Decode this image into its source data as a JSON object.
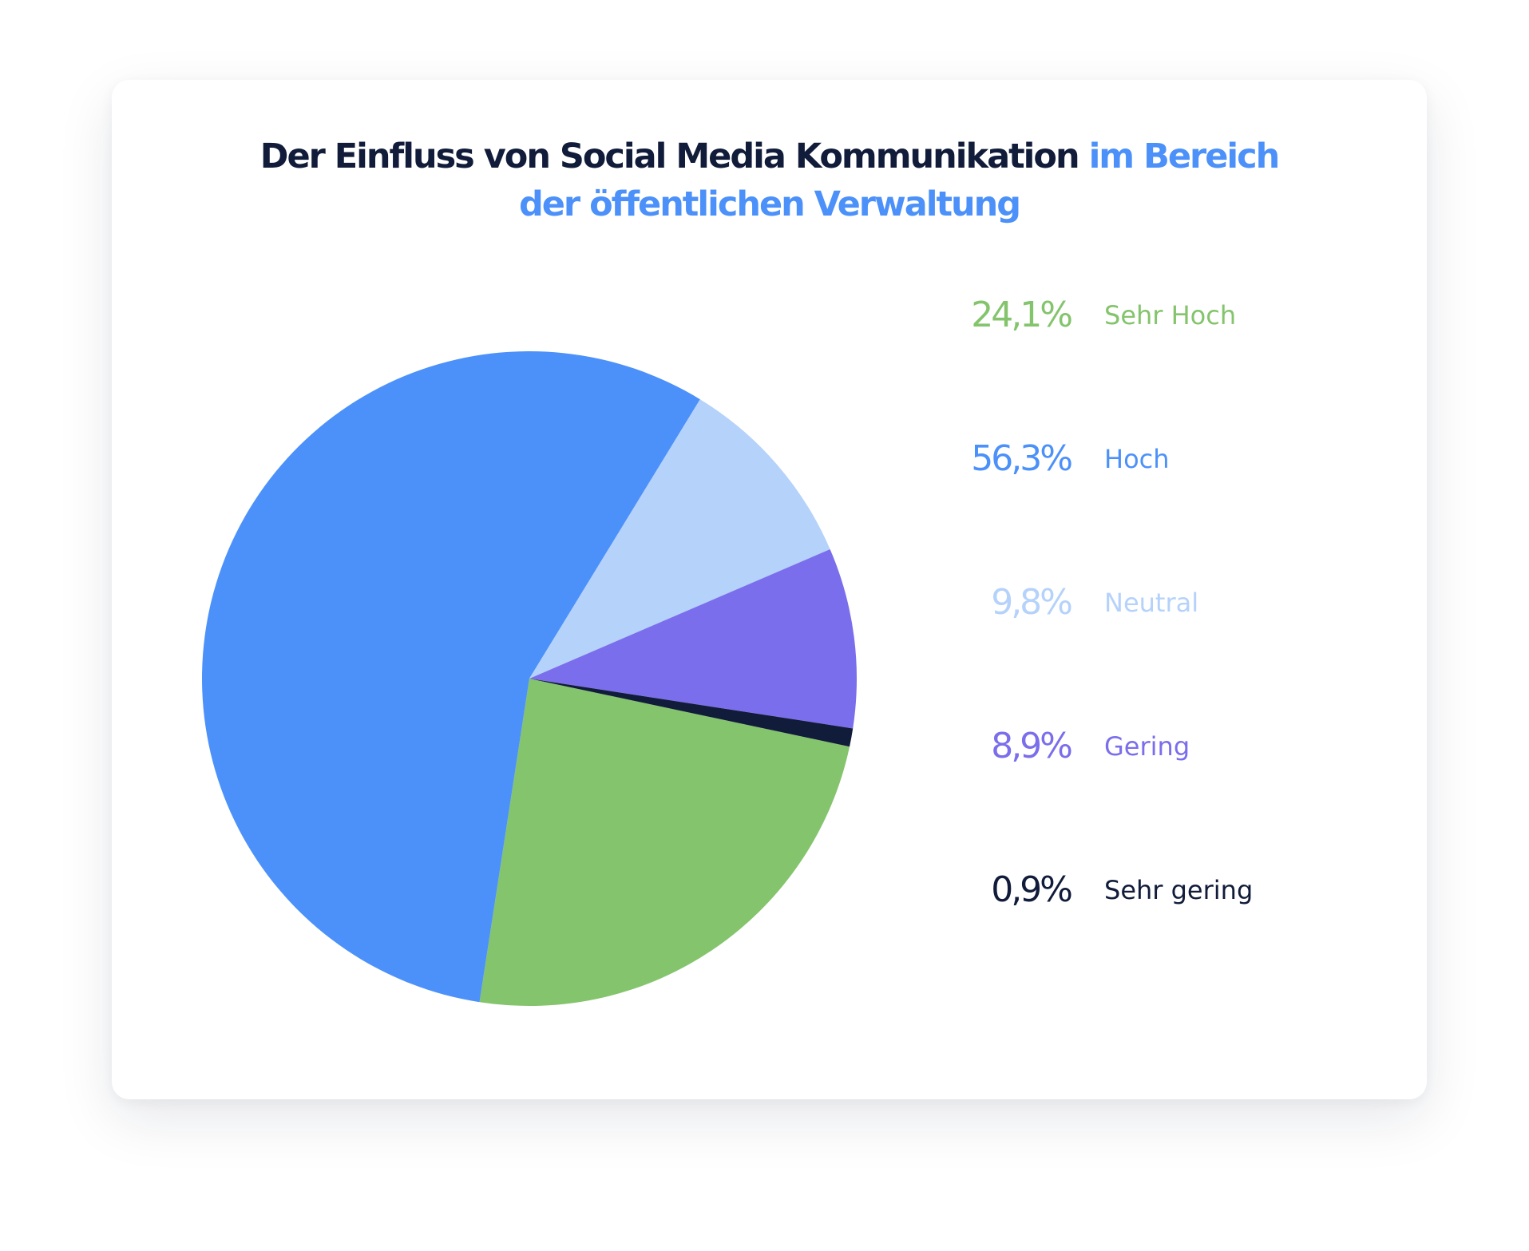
{
  "title": {
    "dark": "Der Einfluss von Social Media Kommunikation",
    "accent_line1": "im Bereich",
    "accent_line2": "der öffentlichen Verwaltung"
  },
  "colors": {
    "title_dark": "#111c3a",
    "title_accent": "#4c91f9"
  },
  "chart_data": {
    "type": "pie",
    "title": "Der Einfluss von Social Media Kommunikation im Bereich der öffentlichen Verwaltung",
    "legend_position": "right",
    "slices": [
      {
        "label": "Sehr Hoch",
        "value": 24.1,
        "display": "24,1%",
        "color": "#84c46c"
      },
      {
        "label": "Hoch",
        "value": 56.3,
        "display": "56,3%",
        "color": "#4c91f9"
      },
      {
        "label": "Neutral",
        "value": 9.8,
        "display": "9,8%",
        "color": "#b5d2fb"
      },
      {
        "label": "Gering",
        "value": 8.9,
        "display": "8,9%",
        "color": "#7a6eec"
      },
      {
        "label": "Sehr gering",
        "value": 0.9,
        "display": "0,9%",
        "color": "#111c3a"
      }
    ]
  }
}
